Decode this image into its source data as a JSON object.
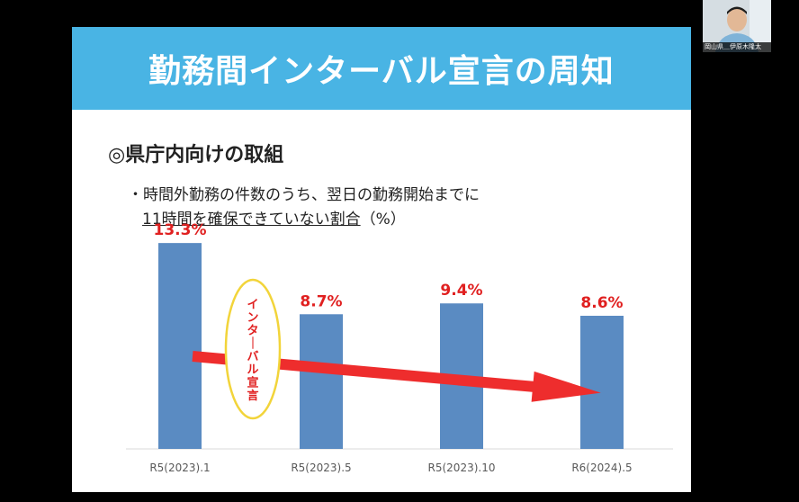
{
  "slide": {
    "title": "勤務間インターバル宣言の周知",
    "section_heading": "◎県庁内向けの取組",
    "bullet_line1": "・時間外勤務の件数のうち、翌日の勤務開始までに",
    "bullet_line2_underlined": "11時間を確保できていない割合",
    "bullet_line2_suffix": "（%）"
  },
  "chart_data": {
    "type": "bar",
    "categories": [
      "R5(2023).1",
      "R5(2023).5",
      "R5(2023).10",
      "R6(2024).5"
    ],
    "values": [
      13.3,
      8.7,
      9.4,
      8.6
    ],
    "value_labels": [
      "13.3%",
      "8.7%",
      "9.4%",
      "8.6%"
    ],
    "ylim": [
      0,
      15
    ],
    "grid": false,
    "bar_color": "#5a8bc2",
    "label_color": "#e02020",
    "annotation": {
      "text": "インターバル宣言",
      "shape": "ellipse",
      "outline_color": "#f2d43a",
      "text_color": "#e02020"
    },
    "trend_arrow_color": "#ee2d2d"
  },
  "webcam": {
    "name": "岡山県＿伊原木隆太"
  }
}
